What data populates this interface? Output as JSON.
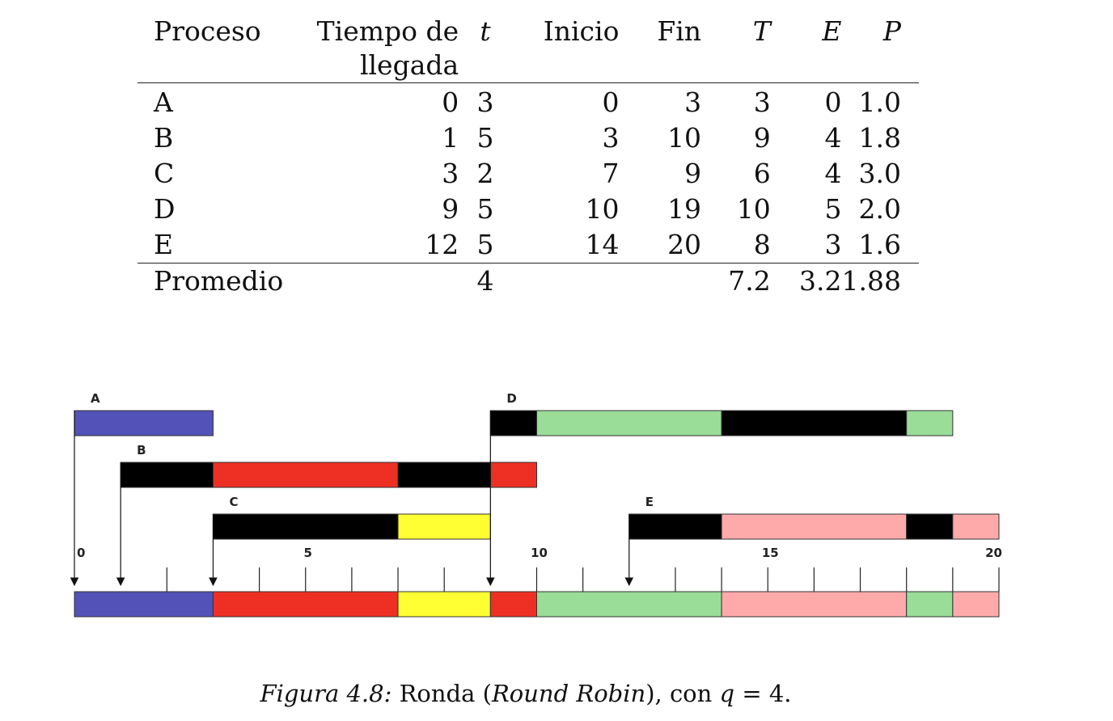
{
  "table": {
    "headers": {
      "proceso": "Proceso",
      "llegada_line1": "Tiempo de",
      "llegada_line2": "llegada",
      "t": "t",
      "inicio": "Inicio",
      "fin": "Fin",
      "T": "T",
      "E": "E",
      "P": "P"
    },
    "rows": [
      {
        "proceso": "A",
        "llegada": "0",
        "t": "3",
        "inicio": "0",
        "fin": "3",
        "T": "3",
        "E": "0",
        "P": "1.0"
      },
      {
        "proceso": "B",
        "llegada": "1",
        "t": "5",
        "inicio": "3",
        "fin": "10",
        "T": "9",
        "E": "4",
        "P": "1.8"
      },
      {
        "proceso": "C",
        "llegada": "3",
        "t": "2",
        "inicio": "7",
        "fin": "9",
        "T": "6",
        "E": "4",
        "P": "3.0"
      },
      {
        "proceso": "D",
        "llegada": "9",
        "t": "5",
        "inicio": "10",
        "fin": "19",
        "T": "10",
        "E": "5",
        "P": "2.0"
      },
      {
        "proceso": "E",
        "llegada": "12",
        "t": "5",
        "inicio": "14",
        "fin": "20",
        "T": "8",
        "E": "3",
        "P": "1.6"
      }
    ],
    "footer": {
      "label": "Promedio",
      "t": "4",
      "T": "7.2",
      "E": "3.2",
      "P": "1.88"
    }
  },
  "diagram": {
    "axis": {
      "min": 0,
      "max": 20,
      "tick_labels": [
        "0",
        "5",
        "10",
        "15",
        "20"
      ]
    },
    "colors": {
      "A": "#5252b8",
      "B": "#ee3024",
      "C": "#ffff33",
      "D": "#99dd99",
      "E": "#ffaaaa",
      "wait": "#000000"
    },
    "processes": [
      {
        "label": "A",
        "arrival": 0,
        "segments": [
          {
            "from": 0,
            "to": 3,
            "state": "run"
          }
        ]
      },
      {
        "label": "B",
        "arrival": 1,
        "segments": [
          {
            "from": 1,
            "to": 3,
            "state": "wait"
          },
          {
            "from": 3,
            "to": 7,
            "state": "run"
          },
          {
            "from": 7,
            "to": 9,
            "state": "wait"
          },
          {
            "from": 9,
            "to": 10,
            "state": "run"
          }
        ]
      },
      {
        "label": "C",
        "arrival": 3,
        "segments": [
          {
            "from": 3,
            "to": 7,
            "state": "wait"
          },
          {
            "from": 7,
            "to": 9,
            "state": "run"
          }
        ]
      },
      {
        "label": "D",
        "arrival": 9,
        "segments": [
          {
            "from": 9,
            "to": 10,
            "state": "wait"
          },
          {
            "from": 10,
            "to": 14,
            "state": "run"
          },
          {
            "from": 14,
            "to": 18,
            "state": "wait"
          },
          {
            "from": 18,
            "to": 19,
            "state": "run"
          }
        ]
      },
      {
        "label": "E",
        "arrival": 12,
        "segments": [
          {
            "from": 12,
            "to": 14,
            "state": "wait"
          },
          {
            "from": 14,
            "to": 18,
            "state": "run"
          },
          {
            "from": 18,
            "to": 19,
            "state": "wait"
          },
          {
            "from": 19,
            "to": 20,
            "state": "run"
          }
        ]
      }
    ],
    "timeline": [
      {
        "from": 0,
        "to": 3,
        "process": "A"
      },
      {
        "from": 3,
        "to": 7,
        "process": "B"
      },
      {
        "from": 7,
        "to": 9,
        "process": "C"
      },
      {
        "from": 9,
        "to": 10,
        "process": "B"
      },
      {
        "from": 10,
        "to": 14,
        "process": "D"
      },
      {
        "from": 14,
        "to": 18,
        "process": "E"
      },
      {
        "from": 18,
        "to": 19,
        "process": "D"
      },
      {
        "from": 19,
        "to": 20,
        "process": "E"
      }
    ]
  },
  "caption": {
    "prefix": "Figura 4.8:",
    "part1": " Ronda (",
    "italic_term": "Round Robin",
    "part2": "), con ",
    "q_var": "q",
    "part3": " = 4."
  }
}
